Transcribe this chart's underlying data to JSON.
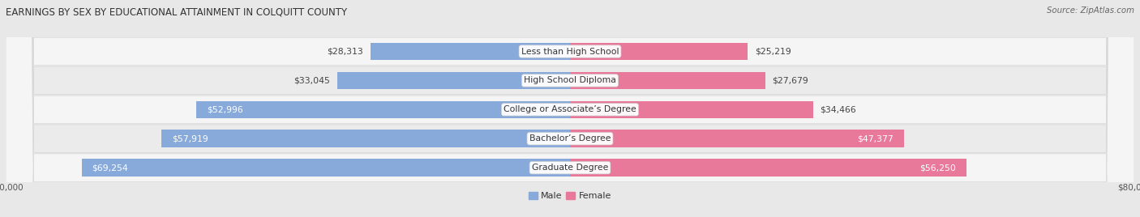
{
  "title": "EARNINGS BY SEX BY EDUCATIONAL ATTAINMENT IN COLQUITT COUNTY",
  "source": "Source: ZipAtlas.com",
  "categories": [
    "Less than High School",
    "High School Diploma",
    "College or Associate’s Degree",
    "Bachelor’s Degree",
    "Graduate Degree"
  ],
  "male_values": [
    28313,
    33045,
    52996,
    57919,
    69254
  ],
  "female_values": [
    25219,
    27679,
    34466,
    47377,
    56250
  ],
  "male_color": "#88AADB",
  "female_color": "#E8799A",
  "bar_height": 0.6,
  "max_value": 80000,
  "bg_color": "#e8e8e8",
  "row_bg_light": "#f5f5f5",
  "row_bg_dark": "#e0e0e0",
  "label_fontsize": 7.8,
  "title_fontsize": 8.5,
  "axis_label_fontsize": 7.5,
  "legend_fontsize": 8.0,
  "value_label_threshold": 40000
}
